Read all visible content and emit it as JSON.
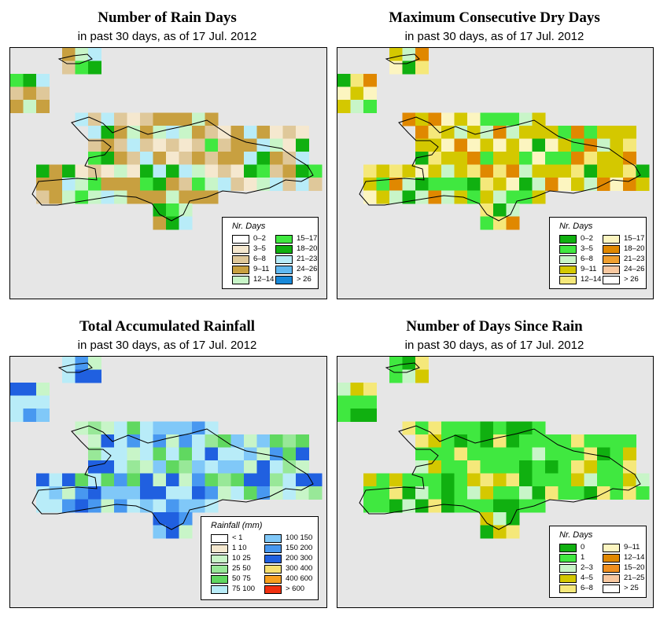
{
  "panels": [
    {
      "id": "rain-days",
      "title": "Number of Rain Days",
      "subtitle": "in past 30 days, as of  17 Jul. 2012",
      "legend": {
        "title": "Nr. Days",
        "items": [
          {
            "label": "0–2",
            "color": "#ffffff"
          },
          {
            "label": "3–5",
            "color": "#f5e8cf"
          },
          {
            "label": "6–8",
            "color": "#dfc89a"
          },
          {
            "label": "9–11",
            "color": "#c8a040"
          },
          {
            "label": "12–14",
            "color": "#c8f5c8"
          },
          {
            "label": "15–17",
            "color": "#40e840"
          },
          {
            "label": "18–20",
            "color": "#10b010"
          },
          {
            "label": "21–23",
            "color": "#b8ecf8"
          },
          {
            "label": "24–26",
            "color": "#60b8f0"
          },
          {
            "label": "> 26",
            "color": "#1888d8"
          }
        ]
      }
    },
    {
      "id": "dry-days",
      "title": "Maximum Consecutive Dry Days",
      "subtitle": "in past 30 days, as of  17 Jul. 2012",
      "legend": {
        "title": "Nr. Days",
        "items": [
          {
            "label": "0–2",
            "color": "#10b010"
          },
          {
            "label": "3–5",
            "color": "#40e840"
          },
          {
            "label": "6–8",
            "color": "#c8f5c8"
          },
          {
            "label": "9–11",
            "color": "#d4c800"
          },
          {
            "label": "12–14",
            "color": "#f5e87a"
          },
          {
            "label": "15–17",
            "color": "#fcf5c0"
          },
          {
            "label": "18–20",
            "color": "#e08800"
          },
          {
            "label": "21–23",
            "color": "#f0a030"
          },
          {
            "label": "24–26",
            "color": "#f8c8a0"
          },
          {
            "label": "> 26",
            "color": "#ffffff"
          }
        ]
      }
    },
    {
      "id": "total-rainfall",
      "title": "Total Accumulated Rainfall",
      "subtitle": "in past 30 days, as of  17 Jul. 2012",
      "legend": {
        "title": "Rainfall (mm)",
        "items": [
          {
            "label": "< 1",
            "color": "#ffffff"
          },
          {
            "label": "1   10",
            "color": "#f5e8cf"
          },
          {
            "label": "10   25",
            "color": "#c8f5c8"
          },
          {
            "label": "25   50",
            "color": "#98e898"
          },
          {
            "label": "50   75",
            "color": "#60d860"
          },
          {
            "label": "75   100",
            "color": "#b8ecf8"
          },
          {
            "label": "100   150",
            "color": "#80c8f8"
          },
          {
            "label": "150   200",
            "color": "#4898f0"
          },
          {
            "label": "200   300",
            "color": "#2060e0"
          },
          {
            "label": "300   400",
            "color": "#f8e070"
          },
          {
            "label": "400   600",
            "color": "#f8a020"
          },
          {
            "label": "> 600",
            "color": "#f03010"
          }
        ]
      }
    },
    {
      "id": "days-since-rain",
      "title": "Number of Days Since Rain",
      "subtitle": "in past 30 days, as of  17 Jul. 2012",
      "legend": {
        "title": "Nr. Days",
        "items": [
          {
            "label": "0",
            "color": "#10b010"
          },
          {
            "label": "1",
            "color": "#40e840"
          },
          {
            "label": "2–3",
            "color": "#c8f5c8"
          },
          {
            "label": "4–5",
            "color": "#d4c800"
          },
          {
            "label": "6–8",
            "color": "#f5e87a"
          },
          {
            "label": "9–11",
            "color": "#fcf5c0"
          },
          {
            "label": "12–14",
            "color": "#e08800"
          },
          {
            "label": "15–20",
            "color": "#f09020"
          },
          {
            "label": "21–25",
            "color": "#f8c8a0"
          },
          {
            "label": "> 25",
            "color": "#ffffff"
          }
        ]
      }
    }
  ]
}
